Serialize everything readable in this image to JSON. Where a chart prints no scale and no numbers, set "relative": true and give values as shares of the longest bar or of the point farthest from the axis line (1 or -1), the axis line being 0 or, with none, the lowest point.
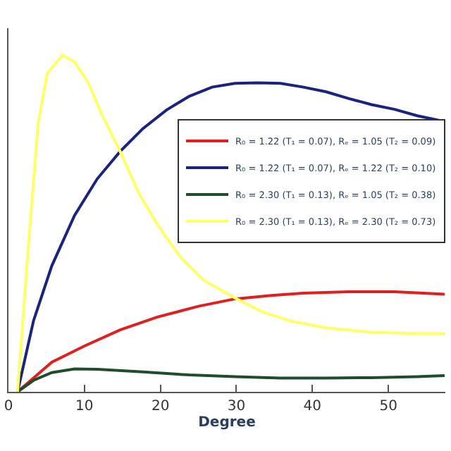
{
  "chart_data": {
    "type": "line",
    "relative": true,
    "xlabel": "Degree",
    "xlim": [
      0,
      57.5
    ],
    "xticks": [
      0,
      10,
      20,
      30,
      40,
      50
    ],
    "legend": "right",
    "marker": "none",
    "line_style": "solid",
    "series": [
      {
        "name": "R₀ = 1.22 (T₁ = 0.07), Rₑ = 1.05 (T₂ = 0.09)",
        "color": "#e02020",
        "x": [
          1.2,
          5.7,
          10,
          14.7,
          19.6,
          25,
          29.8,
          34.6,
          38.8,
          44.8,
          50.8,
          57.4
        ],
        "values": [
          0,
          0.088,
          0.136,
          0.184,
          0.222,
          0.254,
          0.276,
          0.286,
          0.293,
          0.297,
          0.297,
          0.29
        ]
      },
      {
        "name": "R₀ = 1.22 (T₁ = 0.07), Rₑ = 1.22 (T₂ = 0.10)",
        "color": "#1a237e",
        "x": [
          1.2,
          3.3,
          5.7,
          8.7,
          11.7,
          14.7,
          17.7,
          20.8,
          23.8,
          26.8,
          29.8,
          32.8,
          35.8,
          38.8,
          41.8,
          44.8,
          47.8,
          50.8,
          53.8,
          57.4
        ],
        "values": [
          0,
          0.211,
          0.374,
          0.524,
          0.633,
          0.714,
          0.782,
          0.837,
          0.878,
          0.905,
          0.916,
          0.918,
          0.916,
          0.905,
          0.891,
          0.871,
          0.853,
          0.839,
          0.82,
          0.803
        ]
      },
      {
        "name": "R₀ = 2.30 (T₁ = 0.13), Rₑ = 1.05 (T₂ = 0.38)",
        "color": "#1f4d2b",
        "x": [
          1.2,
          3.3,
          5.7,
          8.7,
          11.7,
          17.7,
          23.8,
          29.8,
          35.8,
          41.8,
          47.8,
          53.8,
          57.4
        ],
        "values": [
          0,
          0.034,
          0.057,
          0.068,
          0.067,
          0.059,
          0.05,
          0.045,
          0.041,
          0.041,
          0.042,
          0.045,
          0.048
        ]
      },
      {
        "name": "R₀ = 2.30 (T₁ = 0.13), Rₑ = 2.30 (T₂ = 0.73)",
        "color": "#ffff66",
        "x": [
          1.2,
          2.7,
          3.9,
          5.1,
          7.1,
          8.7,
          10.5,
          12.3,
          14.7,
          17.1,
          19.6,
          22.6,
          25.6,
          29.8,
          33.4,
          37,
          41.8,
          47.8,
          53.8,
          57.4
        ],
        "values": [
          0,
          0.456,
          0.796,
          0.946,
          1.0,
          0.98,
          0.918,
          0.823,
          0.714,
          0.592,
          0.497,
          0.401,
          0.333,
          0.279,
          0.238,
          0.211,
          0.19,
          0.177,
          0.173,
          0.173
        ]
      }
    ]
  }
}
